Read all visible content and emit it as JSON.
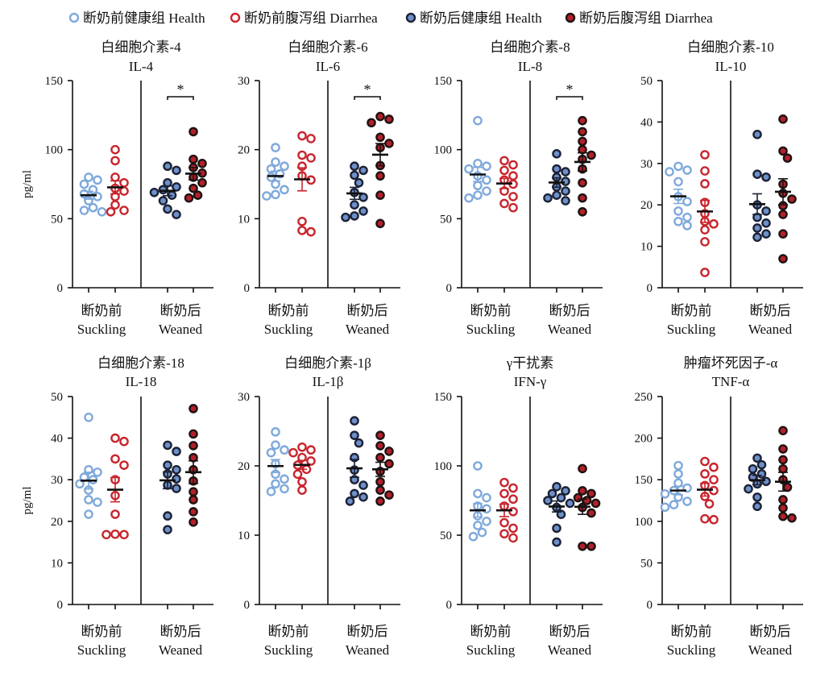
{
  "legend": [
    {
      "label": "断奶前健康组 Health",
      "stroke": "#7fa9db",
      "fill": "#ffffff"
    },
    {
      "label": "断奶前腹泻组 Diarrhea",
      "stroke": "#c8252d",
      "fill": "#ffffff"
    },
    {
      "label": "断奶后健康组 Health",
      "stroke": "#1c2236",
      "fill": "#6e90c8"
    },
    {
      "label": "断奶后腹泻组 Diarrhea",
      "stroke": "#1e1212",
      "fill": "#b3202a"
    }
  ],
  "group_labels": {
    "suckling_cn": "断奶前",
    "suckling_en": "Suckling",
    "weaned_cn": "断奶后",
    "weaned_en": "Weaned"
  },
  "chart_data": [
    {
      "type": "scatter",
      "title": "白细胞介素-4",
      "subtitle": "IL-4",
      "ylabel": "pg/ml",
      "ylim": [
        0,
        150
      ],
      "yticks": [
        0,
        50,
        100,
        150
      ],
      "significance": "*",
      "series": [
        {
          "values": [
            80,
            78,
            75,
            71,
            68,
            66,
            63,
            58,
            56,
            55
          ]
        },
        {
          "values": [
            100,
            92,
            80,
            76,
            72,
            70,
            66,
            60,
            56,
            55
          ]
        },
        {
          "values": [
            88,
            85,
            76,
            73,
            71,
            69,
            67,
            63,
            57,
            53
          ]
        },
        {
          "values": [
            113,
            93,
            90,
            87,
            83,
            80,
            76,
            72,
            67,
            65
          ]
        }
      ]
    },
    {
      "type": "scatter",
      "title": "白细胞介素-6",
      "subtitle": "IL-6",
      "ylim": [
        0,
        30
      ],
      "yticks": [
        0,
        10,
        20,
        30
      ],
      "significance": "*",
      "series": [
        {
          "values": [
            20.3,
            18.2,
            17.6,
            17.2,
            16.5,
            16,
            15,
            14.2,
            13.5,
            13.3
          ]
        },
        {
          "values": [
            22,
            21.6,
            19.2,
            18.8,
            17.6,
            16.2,
            15.6,
            9.6,
            8.3,
            8.1
          ]
        },
        {
          "values": [
            17.6,
            17,
            16.3,
            15.2,
            13.8,
            13.1,
            12,
            11.1,
            10.4,
            10.2
          ]
        },
        {
          "values": [
            24.8,
            24.4,
            23.9,
            21.8,
            20.9,
            20.3,
            17.7,
            16.2,
            13.4,
            9.3
          ]
        }
      ]
    },
    {
      "type": "scatter",
      "title": "白细胞介素-8",
      "subtitle": "IL-8",
      "ylim": [
        0,
        150
      ],
      "yticks": [
        0,
        50,
        100,
        150
      ],
      "significance": "*",
      "series": [
        {
          "values": [
            121,
            90,
            88,
            86,
            81,
            78,
            74,
            70,
            67,
            65
          ]
        },
        {
          "values": [
            92,
            89,
            85,
            81,
            78,
            75,
            70,
            66,
            61,
            58
          ]
        },
        {
          "values": [
            97,
            86,
            84,
            80,
            77,
            73,
            70,
            67,
            65,
            63
          ]
        },
        {
          "values": [
            121,
            113,
            106,
            100,
            96,
            93,
            86,
            76,
            65,
            55
          ]
        }
      ]
    },
    {
      "type": "scatter",
      "title": "白细胞介素-10",
      "subtitle": "IL-10",
      "ylim": [
        0,
        50
      ],
      "yticks": [
        0,
        10,
        20,
        30,
        40,
        50
      ],
      "series": [
        {
          "values": [
            29.3,
            28.4,
            28,
            25.6,
            22,
            20.8,
            18.5,
            17,
            16,
            15
          ]
        },
        {
          "values": [
            32.1,
            28.2,
            25.1,
            20.6,
            17.9,
            16,
            15.4,
            14,
            11.1,
            3.7
          ]
        },
        {
          "values": [
            37,
            27.4,
            26.7,
            20,
            18.5,
            17,
            15.6,
            14.4,
            13,
            12.2
          ]
        },
        {
          "values": [
            40.7,
            33,
            31.3,
            25,
            22.8,
            21.4,
            19.8,
            17.7,
            13,
            7
          ]
        }
      ]
    },
    {
      "type": "scatter",
      "title": "白细胞介素-18",
      "subtitle": "IL-18",
      "ylabel": "pg/ml",
      "ylim": [
        0,
        50
      ],
      "yticks": [
        0,
        10,
        20,
        30,
        40,
        50
      ],
      "series": [
        {
          "values": [
            45,
            32.4,
            31.8,
            30.6,
            30,
            29,
            27.5,
            25.2,
            24.6,
            21.7
          ]
        },
        {
          "values": [
            40,
            39.2,
            35,
            33.5,
            30,
            26.2,
            21.7,
            16.9,
            16.8,
            16.8
          ]
        },
        {
          "values": [
            38.3,
            36.8,
            33.5,
            32.4,
            31.4,
            30.2,
            28.7,
            27.9,
            21.3,
            18
          ]
        },
        {
          "values": [
            47.1,
            41,
            38.2,
            35.3,
            32.4,
            29.7,
            27.1,
            25.2,
            22.3,
            19.8
          ]
        }
      ]
    },
    {
      "type": "scatter",
      "title": "白细胞介素-1β",
      "subtitle": "IL-1β",
      "ylim": [
        0,
        30
      ],
      "yticks": [
        0,
        10,
        20,
        30
      ],
      "series": [
        {
          "values": [
            24.9,
            23,
            22.3,
            21.9,
            20.3,
            18.8,
            18.1,
            17.4,
            16.7,
            16.3
          ]
        },
        {
          "values": [
            22.7,
            22.3,
            21.9,
            21.2,
            20.7,
            20.1,
            19.5,
            18.8,
            17.7,
            16.5
          ]
        },
        {
          "values": [
            26.5,
            24.4,
            23.3,
            21.2,
            19.4,
            18,
            17.2,
            16,
            15.5,
            14.9
          ]
        },
        {
          "values": [
            24.4,
            22.9,
            22.1,
            21.2,
            20.3,
            19.2,
            17.7,
            16.5,
            15.8,
            14.9
          ]
        }
      ]
    },
    {
      "type": "scatter",
      "title": "γ干扰素",
      "subtitle": "IFN-γ",
      "ylim": [
        0,
        150
      ],
      "yticks": [
        0,
        50,
        100,
        150
      ],
      "series": [
        {
          "values": [
            100,
            80,
            77,
            71,
            69,
            64,
            60,
            57,
            52,
            49
          ]
        },
        {
          "values": [
            88,
            84,
            80,
            76,
            71,
            67,
            59,
            55,
            51,
            48
          ]
        },
        {
          "values": [
            85,
            82,
            80,
            77,
            75,
            73,
            70,
            65,
            55,
            45
          ]
        },
        {
          "values": [
            98,
            82,
            80,
            77,
            75,
            73,
            70,
            66,
            42,
            42
          ]
        }
      ]
    },
    {
      "type": "scatter",
      "title": "肿瘤坏死因子-α",
      "subtitle": "TNF-α",
      "ylim": [
        0,
        250
      ],
      "yticks": [
        0,
        50,
        100,
        150,
        200,
        250
      ],
      "series": [
        {
          "values": [
            167,
            157,
            146,
            140,
            137,
            133,
            129,
            124,
            120,
            117
          ]
        },
        {
          "values": [
            172,
            165,
            157,
            150,
            143,
            137,
            130,
            121,
            103,
            102
          ]
        },
        {
          "values": [
            176,
            168,
            163,
            157,
            153,
            148,
            145,
            139,
            129,
            118
          ]
        },
        {
          "values": [
            209,
            187,
            174,
            163,
            150,
            141,
            126,
            116,
            106,
            104
          ]
        }
      ]
    }
  ]
}
